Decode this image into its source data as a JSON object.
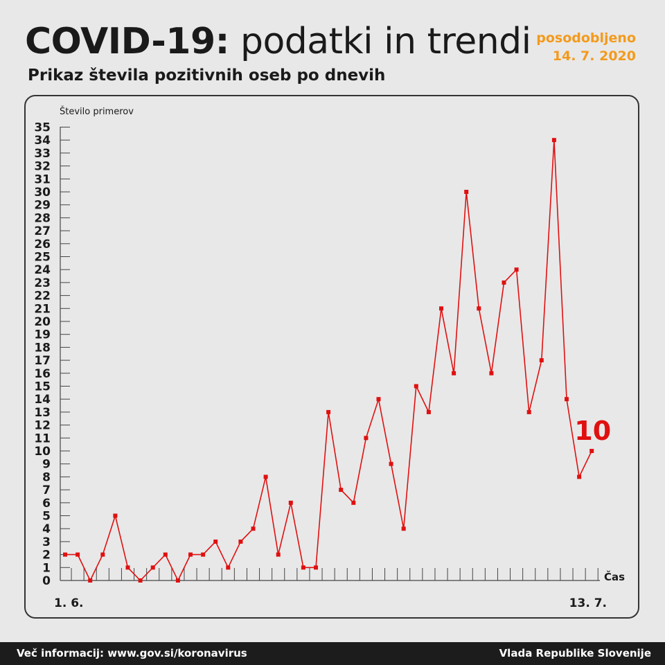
{
  "header": {
    "title_bold": "COVID-19:",
    "title_light": "podatki in trendi",
    "updated_label": "posodobljeno",
    "updated_date": "14. 7. 2020",
    "subtitle": "Prikaz števila pozitivnih oseb po dnevih"
  },
  "footer": {
    "info": "Več informacij: www.gov.si/koronavirus",
    "org": "Vlada Republike Slovenije"
  },
  "colors": {
    "accent": "#f39a1c",
    "line": "#e01010",
    "background": "#e8e8e8",
    "footer": "#1c1c1c"
  },
  "chart_data": {
    "type": "line",
    "ylabel": "Število primerov",
    "xlabel": "Čas",
    "x_start_label": "1. 6.",
    "x_end_label": "13. 7.",
    "ylim": [
      0,
      35
    ],
    "yticks": [
      0,
      1,
      2,
      3,
      4,
      5,
      6,
      7,
      8,
      9,
      10,
      11,
      12,
      13,
      14,
      15,
      16,
      17,
      18,
      19,
      20,
      21,
      22,
      23,
      24,
      25,
      26,
      27,
      28,
      29,
      30,
      31,
      32,
      33,
      34,
      35
    ],
    "grid": false,
    "last_value_label": "10",
    "series": [
      {
        "values": [
          2,
          2,
          0,
          2,
          5,
          1,
          0,
          1,
          2,
          0,
          2,
          2,
          3,
          1,
          3,
          4,
          8,
          2,
          6,
          1,
          1,
          13,
          7,
          6,
          11,
          14,
          9,
          4,
          15,
          13,
          21,
          16,
          30,
          21,
          16,
          23,
          24,
          13,
          17,
          34,
          14,
          8,
          10
        ]
      }
    ]
  }
}
